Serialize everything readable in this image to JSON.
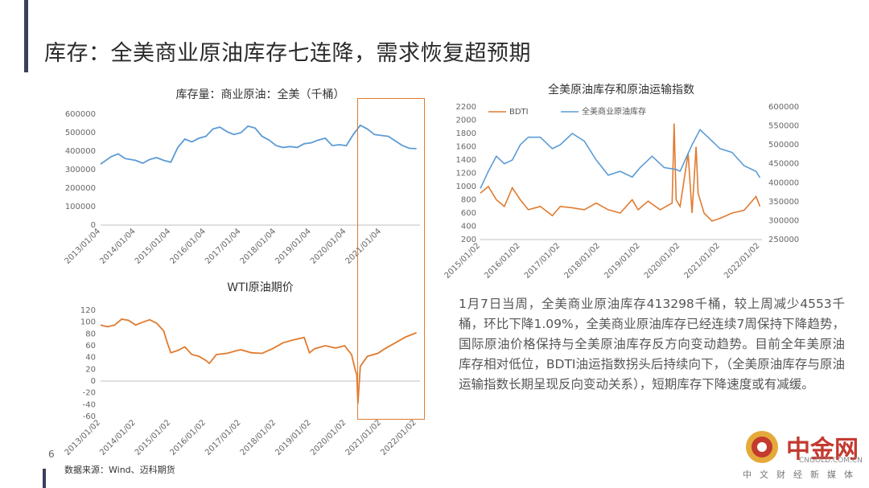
{
  "slide": {
    "title": "库存：全美商业原油库存七连降，需求恢复超预期",
    "page_number": "6",
    "source": "数据来源：Wind、迈科期货",
    "summary": "1月7日当周，全美商业原油库存413298千桶，较上周减少4553千桶，环比下降1.09%，全美商业原油库存已经连续7周保持下降趋势，国际原油价格保持与全美原油库存反方向变动趋势。目前全年美原油库存相对低位，BDTI油运指数拐头后持续向下，（全美原油库存与原油运输指数长期呈现反向变动关系），短期库存下降速度或有减缓。"
  },
  "watermark": {
    "name": "中金网",
    "url": "CNGOLD.COM.CN",
    "tagline": "中文财经新媒体"
  },
  "colors": {
    "blue": "#5b9bd5",
    "orange": "#e07b30",
    "highlight_box": "#e07b30",
    "axis": "#bfbfbf"
  },
  "chart_data": [
    {
      "type": "line",
      "title": "库存量：商业原油：全美（千桶）",
      "color": "#5b9bd5",
      "x_ticks": [
        "2013/01/04",
        "2014/01/04",
        "2015/01/04",
        "2016/01/04",
        "2017/01/04",
        "2018/01/04",
        "2019/01/04",
        "2020/01/04",
        "2021/01/04"
      ],
      "ylim": [
        0,
        600000
      ],
      "y_ticks": [
        "0",
        "100000",
        "200000",
        "300000",
        "400000",
        "500000",
        "600000"
      ],
      "x": [
        2013.0,
        2013.3,
        2013.5,
        2013.7,
        2014.0,
        2014.2,
        2014.4,
        2014.6,
        2014.8,
        2015.0,
        2015.2,
        2015.4,
        2015.6,
        2015.8,
        2016.0,
        2016.2,
        2016.4,
        2016.6,
        2016.8,
        2017.0,
        2017.2,
        2017.4,
        2017.6,
        2017.8,
        2018.0,
        2018.2,
        2018.4,
        2018.6,
        2018.8,
        2019.0,
        2019.2,
        2019.4,
        2019.6,
        2019.8,
        2020.0,
        2020.2,
        2020.4,
        2020.6,
        2020.8,
        2021.0,
        2021.2,
        2021.4,
        2021.6,
        2021.8,
        2022.0
      ],
      "values": [
        330000,
        370000,
        385000,
        360000,
        350000,
        335000,
        355000,
        365000,
        350000,
        340000,
        420000,
        465000,
        450000,
        470000,
        480000,
        520000,
        530000,
        505000,
        490000,
        500000,
        535000,
        525000,
        480000,
        460000,
        430000,
        420000,
        425000,
        420000,
        440000,
        445000,
        460000,
        470000,
        430000,
        435000,
        430000,
        490000,
        540000,
        520000,
        490000,
        485000,
        480000,
        455000,
        430000,
        415000,
        413298
      ]
    },
    {
      "type": "line",
      "title": "WTI原油期价",
      "color": "#e07b30",
      "x_ticks": [
        "2013/01/02",
        "2014/01/02",
        "2015/01/02",
        "2016/01/02",
        "2017/01/02",
        "2018/01/02",
        "2019/01/02",
        "2020/01/02",
        "2021/01/02",
        "2022/01/02"
      ],
      "ylim": [
        -60,
        120
      ],
      "y_ticks": [
        "-60",
        "-40",
        "-20",
        "0",
        "20",
        "40",
        "60",
        "80",
        "100",
        "120"
      ],
      "x": [
        2013.0,
        2013.2,
        2013.4,
        2013.6,
        2013.8,
        2014.0,
        2014.2,
        2014.4,
        2014.6,
        2014.8,
        2014.9,
        2015.0,
        2015.2,
        2015.4,
        2015.6,
        2015.8,
        2016.0,
        2016.1,
        2016.3,
        2016.6,
        2016.9,
        2017.0,
        2017.3,
        2017.6,
        2017.9,
        2018.2,
        2018.5,
        2018.8,
        2018.95,
        2019.1,
        2019.4,
        2019.7,
        2019.95,
        2020.15,
        2020.25,
        2020.3,
        2020.33,
        2020.4,
        2020.6,
        2020.9,
        2021.1,
        2021.4,
        2021.7,
        2022.0
      ],
      "values": [
        95,
        92,
        95,
        105,
        103,
        95,
        100,
        104,
        98,
        85,
        65,
        48,
        52,
        58,
        45,
        42,
        35,
        30,
        45,
        47,
        52,
        53,
        48,
        47,
        55,
        65,
        70,
        74,
        48,
        55,
        60,
        56,
        60,
        45,
        20,
        10,
        -38,
        25,
        42,
        47,
        55,
        65,
        75,
        82
      ]
    },
    {
      "type": "line",
      "title": "全美原油库存和原油运输指数",
      "x_ticks": [
        "2015/01/02",
        "2016/01/02",
        "2017/01/02",
        "2018/01/02",
        "2019/01/02",
        "2020/01/02",
        "2021/01/02",
        "2022/01/02"
      ],
      "y_left_ticks": [
        "200",
        "400",
        "600",
        "800",
        "1000",
        "1200",
        "1400",
        "1600",
        "1800",
        "2000",
        "2200"
      ],
      "y_right_ticks": [
        "250000",
        "300000",
        "350000",
        "400000",
        "450000",
        "500000",
        "550000",
        "600000"
      ],
      "ylim_left": [
        200,
        2200
      ],
      "ylim_right": [
        250000,
        600000
      ],
      "legend_position": "top-left",
      "series": [
        {
          "name": "BDTI",
          "axis": "left",
          "color": "#e07b30",
          "x": [
            2015.0,
            2015.2,
            2015.4,
            2015.6,
            2015.8,
            2016.0,
            2016.2,
            2016.5,
            2016.8,
            2017.0,
            2017.3,
            2017.6,
            2017.9,
            2018.2,
            2018.5,
            2018.8,
            2018.95,
            2019.2,
            2019.5,
            2019.8,
            2019.85,
            2019.9,
            2020.0,
            2020.2,
            2020.3,
            2020.4,
            2020.45,
            2020.6,
            2020.8,
            2021.0,
            2021.3,
            2021.6,
            2021.9,
            2022.0
          ],
          "values": [
            900,
            1000,
            800,
            700,
            980,
            800,
            650,
            700,
            560,
            700,
            680,
            650,
            750,
            650,
            600,
            800,
            650,
            780,
            650,
            750,
            1950,
            800,
            700,
            1500,
            600,
            1600,
            900,
            600,
            480,
            520,
            600,
            640,
            850,
            700
          ]
        },
        {
          "name": "全美商业原油库存",
          "axis": "right",
          "color": "#5b9bd5",
          "x": [
            2015.0,
            2015.2,
            2015.4,
            2015.6,
            2015.8,
            2016.0,
            2016.2,
            2016.5,
            2016.8,
            2017.0,
            2017.3,
            2017.6,
            2017.9,
            2018.2,
            2018.5,
            2018.8,
            2019.0,
            2019.3,
            2019.6,
            2019.9,
            2020.0,
            2020.3,
            2020.5,
            2020.8,
            2021.0,
            2021.3,
            2021.6,
            2021.9,
            2022.0
          ],
          "values": [
            385000,
            430000,
            470000,
            450000,
            460000,
            500000,
            520000,
            520000,
            490000,
            500000,
            530000,
            510000,
            460000,
            420000,
            430000,
            415000,
            440000,
            470000,
            440000,
            435000,
            430000,
            500000,
            540000,
            510000,
            490000,
            480000,
            445000,
            430000,
            413298
          ]
        }
      ]
    }
  ]
}
